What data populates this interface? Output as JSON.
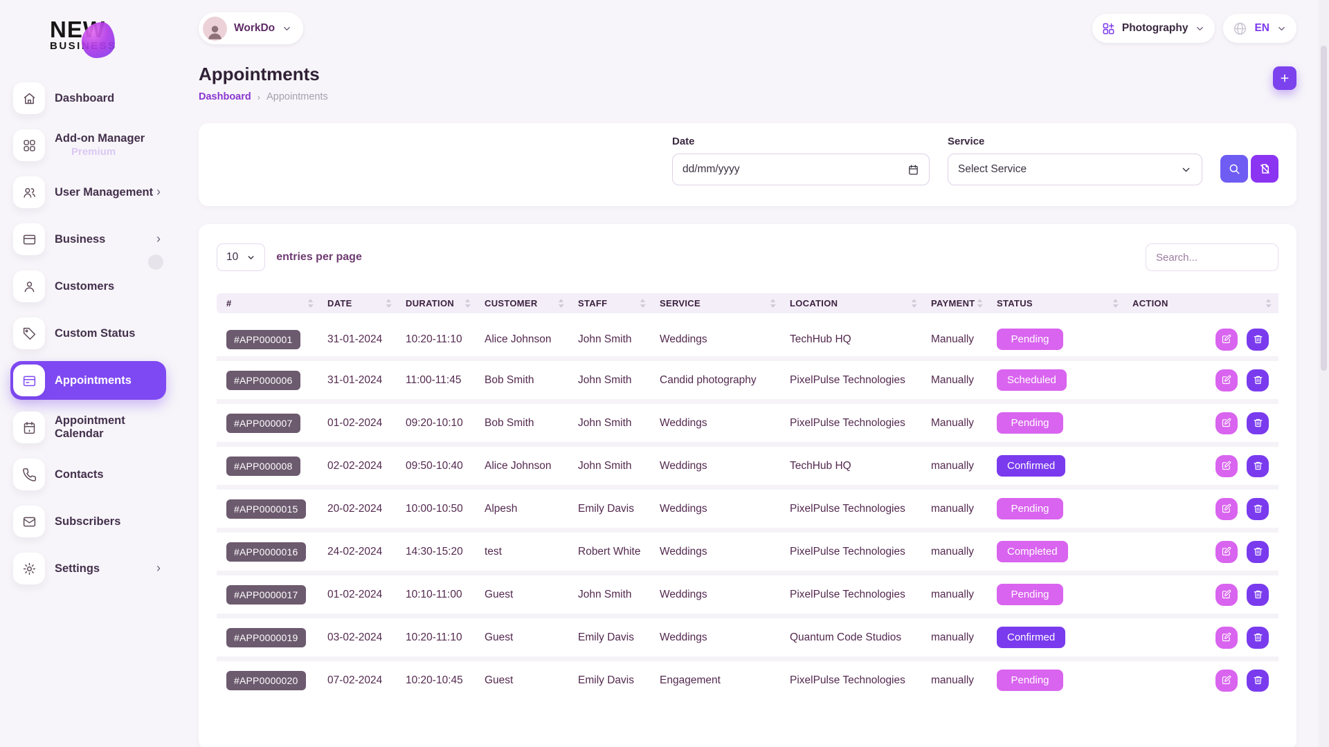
{
  "brand": {
    "name_line1": "NEW",
    "name_line2": "BUSINESS"
  },
  "topbar": {
    "user_label": "WorkDo",
    "workspace_label": "Photography",
    "language_label": "EN"
  },
  "sidebar": {
    "items": [
      {
        "name": "sidebar-item-dashboard",
        "icon": "home",
        "label": "Dashboard"
      },
      {
        "name": "sidebar-item-addon-manager",
        "icon": "grid",
        "label": "Add-on Manager",
        "sub": "Premium"
      },
      {
        "name": "sidebar-item-user-management",
        "icon": "users",
        "label": "User Management",
        "chevron": true
      },
      {
        "name": "sidebar-item-business",
        "icon": "credit-card",
        "label": "Business",
        "chevron": true
      },
      {
        "name": "sidebar-item-customers",
        "icon": "user",
        "label": "Customers"
      },
      {
        "name": "sidebar-item-custom-status",
        "icon": "tag",
        "label": "Custom Status"
      },
      {
        "name": "sidebar-item-appointments",
        "icon": "card",
        "label": "Appointments",
        "state": "active"
      },
      {
        "name": "sidebar-item-appointment-calendar",
        "icon": "calendar",
        "label": "Appointment Calendar"
      },
      {
        "name": "sidebar-item-contacts",
        "icon": "phone",
        "label": "Contacts"
      },
      {
        "name": "sidebar-item-subscribers",
        "icon": "mail",
        "label": "Subscribers"
      },
      {
        "name": "sidebar-item-settings",
        "icon": "gear",
        "label": "Settings",
        "chevron": true
      }
    ]
  },
  "page": {
    "title": "Appointments",
    "breadcrumb_link": "Dashboard",
    "breadcrumb_current": "Appointments"
  },
  "filters": {
    "date_label": "Date",
    "date_value": "dd/mm/yyyy",
    "service_label": "Service",
    "service_value": "Select Service"
  },
  "table": {
    "entries_value": "10",
    "entries_label": "entries per page",
    "search_placeholder": "Search...",
    "columns": [
      "#",
      "DATE",
      "DURATION",
      "CUSTOMER",
      "STAFF",
      "SERVICE",
      "LOCATION",
      "PAYMENT",
      "STATUS",
      "ACTION"
    ],
    "rows": [
      {
        "id": "#APP000001",
        "date": "31-01-2024",
        "duration": "10:20-11:10",
        "customer": "Alice Johnson",
        "staff": "John Smith",
        "service": "Weddings",
        "location": "TechHub HQ",
        "payment": "Manually",
        "status": "Pending",
        "status_variant": "pink"
      },
      {
        "id": "#APP000006",
        "date": "31-01-2024",
        "duration": "11:00-11:45",
        "customer": "Bob Smith",
        "staff": "John Smith",
        "service": "Candid photography",
        "location": "PixelPulse Technologies",
        "payment": "Manually",
        "status": "Scheduled",
        "status_variant": "pink"
      },
      {
        "id": "#APP000007",
        "date": "01-02-2024",
        "duration": "09:20-10:10",
        "customer": "Bob Smith",
        "staff": "John Smith",
        "service": "Weddings",
        "location": "PixelPulse Technologies",
        "payment": "Manually",
        "status": "Pending",
        "status_variant": "pink"
      },
      {
        "id": "#APP000008",
        "date": "02-02-2024",
        "duration": "09:50-10:40",
        "customer": "Alice Johnson",
        "staff": "John Smith",
        "service": "Weddings",
        "location": "TechHub HQ",
        "payment": "manually",
        "status": "Confirmed",
        "status_variant": "purple"
      },
      {
        "id": "#APP0000015",
        "date": "20-02-2024",
        "duration": "10:00-10:50",
        "customer": "Alpesh",
        "staff": "Emily Davis",
        "service": "Weddings",
        "location": "PixelPulse Technologies",
        "payment": "manually",
        "status": "Pending",
        "status_variant": "pink"
      },
      {
        "id": "#APP0000016",
        "date": "24-02-2024",
        "duration": "14:30-15:20",
        "customer": "test",
        "staff": "Robert White",
        "service": "Weddings",
        "location": "PixelPulse Technologies",
        "payment": "manually",
        "status": "Completed",
        "status_variant": "pink"
      },
      {
        "id": "#APP0000017",
        "date": "01-02-2024",
        "duration": "10:10-11:00",
        "customer": "Guest",
        "staff": "John Smith",
        "service": "Weddings",
        "location": "PixelPulse Technologies",
        "payment": "manually",
        "status": "Pending",
        "status_variant": "pink"
      },
      {
        "id": "#APP0000019",
        "date": "03-02-2024",
        "duration": "10:20-11:10",
        "customer": "Guest",
        "staff": "Emily Davis",
        "service": "Weddings",
        "location": "Quantum Code Studios",
        "payment": "manually",
        "status": "Confirmed",
        "status_variant": "purple"
      },
      {
        "id": "#APP0000020",
        "date": "07-02-2024",
        "duration": "10:20-10:45",
        "customer": "Guest",
        "staff": "Emily Davis",
        "service": "Engagement",
        "location": "PixelPulse Technologies",
        "payment": "manually",
        "status": "Pending",
        "status_variant": "pink"
      }
    ]
  },
  "colors": {
    "accent": "#7c3aed",
    "badge_pink": "#d964ef",
    "badge_purple": "#7a3bee",
    "id_badge": "#6c5a6e",
    "search_button": "#6e5cf3",
    "reset_button": "#8b35f3"
  }
}
